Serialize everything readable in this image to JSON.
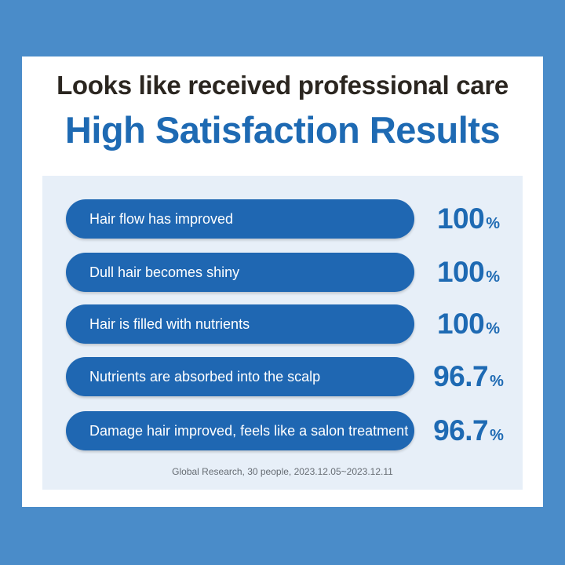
{
  "header": {
    "subtitle": "Looks like received professional care",
    "title": "High Satisfaction Results"
  },
  "results": [
    {
      "label": "Hair flow has improved",
      "value": "100",
      "unit": "%"
    },
    {
      "label": "Dull hair becomes shiny",
      "value": "100",
      "unit": "%"
    },
    {
      "label": "Hair is filled with nutrients",
      "value": "100",
      "unit": "%"
    },
    {
      "label": "Nutrients are absorbed into the scalp",
      "value": "96.7",
      "unit": "%"
    },
    {
      "label": "Damage hair improved, feels like a salon treatment",
      "value": "96.7",
      "unit": "%"
    }
  ],
  "footnote": "Global Research, 30 people, 2023.12.05~2023.12.11",
  "colors": {
    "background": "#4a8cc9",
    "accent": "#1e6ab3",
    "pill": "#1f67b2",
    "panel": "#e7eff8",
    "heading_dark": "#2b2620"
  }
}
